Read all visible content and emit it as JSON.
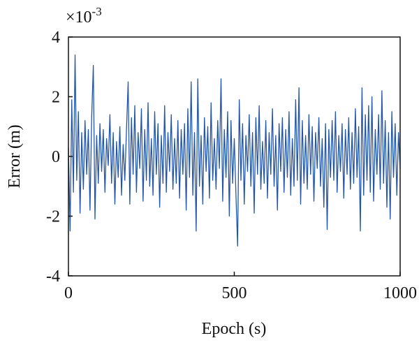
{
  "chart_data": {
    "type": "line",
    "xlabel": "Epoch (s)",
    "ylabel": "Error (m)",
    "offset_label": "×10",
    "offset_exponent": "-3",
    "xlim": [
      0,
      1000
    ],
    "xticks": [
      0,
      500,
      1000
    ],
    "ylim": [
      -4,
      4
    ],
    "yticks": [
      -4,
      -2,
      0,
      2,
      4
    ],
    "x": [
      0,
      5,
      10,
      15,
      20,
      25,
      30,
      35,
      40,
      45,
      50,
      55,
      60,
      65,
      70,
      75,
      80,
      85,
      90,
      95,
      100,
      105,
      110,
      115,
      120,
      125,
      130,
      135,
      140,
      145,
      150,
      155,
      160,
      165,
      170,
      175,
      180,
      185,
      190,
      195,
      200,
      205,
      210,
      215,
      220,
      225,
      230,
      235,
      240,
      245,
      250,
      255,
      260,
      265,
      270,
      275,
      280,
      285,
      290,
      295,
      300,
      305,
      310,
      315,
      320,
      325,
      330,
      335,
      340,
      345,
      350,
      355,
      360,
      365,
      370,
      375,
      380,
      385,
      390,
      395,
      400,
      405,
      410,
      415,
      420,
      425,
      430,
      435,
      440,
      445,
      450,
      455,
      460,
      465,
      470,
      475,
      480,
      485,
      490,
      495,
      500,
      505,
      510,
      515,
      520,
      525,
      530,
      535,
      540,
      545,
      550,
      555,
      560,
      565,
      570,
      575,
      580,
      585,
      590,
      595,
      600,
      605,
      610,
      615,
      620,
      625,
      630,
      635,
      640,
      645,
      650,
      655,
      660,
      665,
      670,
      675,
      680,
      685,
      690,
      695,
      700,
      705,
      710,
      715,
      720,
      725,
      730,
      735,
      740,
      745,
      750,
      755,
      760,
      765,
      770,
      775,
      780,
      785,
      790,
      795,
      800,
      805,
      810,
      815,
      820,
      825,
      830,
      835,
      840,
      845,
      850,
      855,
      860,
      865,
      870,
      875,
      880,
      885,
      890,
      895,
      900,
      905,
      910,
      915,
      920,
      925,
      930,
      935,
      940,
      945,
      950,
      955,
      960,
      965,
      970,
      975,
      980,
      985,
      990,
      995,
      1000
    ],
    "series": [
      {
        "color": "#2456a8",
        "values": [
          0.3,
          -2.5,
          1.9,
          -1.2,
          3.4,
          -0.8,
          1.5,
          -1.9,
          0.8,
          -1.1,
          1.2,
          -0.6,
          0.9,
          -1.8,
          1.3,
          3.05,
          -2.1,
          0.7,
          -0.9,
          1.1,
          -0.5,
          0.9,
          -1.2,
          0.6,
          -0.3,
          1.4,
          -0.9,
          0.8,
          -1.6,
          0.5,
          -0.7,
          1.0,
          -1.3,
          0.4,
          -0.8,
          0.9,
          2.5,
          -1.6,
          1.3,
          -0.6,
          1.7,
          -1.2,
          0.8,
          -0.4,
          1.6,
          -1.5,
          0.9,
          -0.8,
          1.8,
          -1.0,
          0.6,
          -1.3,
          1.5,
          -0.6,
          1.1,
          -1.7,
          0.7,
          -0.9,
          1.7,
          -1.2,
          0.8,
          -0.5,
          1.4,
          -1.1,
          0.6,
          -0.9,
          1.2,
          -1.4,
          0.9,
          -0.6,
          1.1,
          -1.8,
          1.6,
          -0.7,
          2.5,
          -1.3,
          0.8,
          -2.5,
          2.6,
          -1.0,
          0.7,
          -1.6,
          1.3,
          -0.5,
          1.0,
          -1.4,
          1.8,
          -0.8,
          0.6,
          -1.1,
          1.2,
          -0.4,
          2.6,
          -1.5,
          0.9,
          -0.7,
          1.5,
          -2.0,
          1.2,
          -0.9,
          0.6,
          -1.3,
          -3.0,
          1.9,
          -0.8,
          1.1,
          -1.6,
          0.7,
          -0.5,
          1.4,
          -1.0,
          0.8,
          -1.9,
          1.3,
          -0.6,
          1.7,
          -1.1,
          0.5,
          -0.9,
          1.2,
          -1.4,
          0.8,
          -0.6,
          1.6,
          -1.0,
          0.7,
          -1.8,
          1.1,
          -0.5,
          1.3,
          -1.2,
          0.9,
          -0.7,
          1.5,
          -1.3,
          0.6,
          -1.0,
          1.9,
          -0.8,
          2.3,
          -1.6,
          1.2,
          -0.9,
          0.7,
          -1.1,
          1.4,
          -0.6,
          1.0,
          -1.5,
          0.8,
          -0.4,
          1.3,
          -1.0,
          0.6,
          -1.7,
          1.1,
          -2.45,
          0.9,
          -0.7,
          1.2,
          -0.8,
          1.5,
          -1.2,
          0.7,
          -0.5,
          1.1,
          -1.4,
          0.9,
          -0.6,
          1.3,
          -1.1,
          0.8,
          -0.9,
          1.6,
          -0.7,
          1.0,
          -2.5,
          2.3,
          -1.3,
          1.4,
          -0.8,
          1.7,
          -1.2,
          2.0,
          -1.5,
          0.9,
          -0.6,
          1.4,
          -1.1,
          2.2,
          -0.9,
          1.2,
          -1.7,
          0.8,
          -2.1,
          1.5,
          -0.7,
          1.1,
          -1.3,
          0.8,
          -0.4
        ]
      }
    ]
  }
}
